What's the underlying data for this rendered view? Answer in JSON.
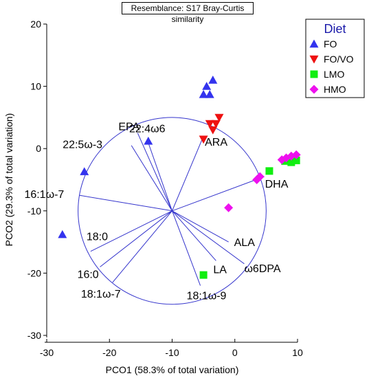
{
  "header": {
    "resemblance": "Resemblance: S17 Bray-Curtis similarity"
  },
  "chart_data": {
    "type": "scatter",
    "title": "",
    "xlabel": "PCO1 (58.3% of total variation)",
    "ylabel": "PCO2 (29.3% of total variation)",
    "xlim": [
      -30,
      10
    ],
    "ylim": [
      -30,
      20
    ],
    "xticks": [
      -30,
      -20,
      -10,
      0,
      10
    ],
    "yticks": [
      -30,
      -20,
      -10,
      0,
      10,
      20
    ],
    "grid": false,
    "legend": {
      "title": "Diet",
      "placement": "top-right"
    },
    "series": [
      {
        "name": "FO",
        "marker": "triangle-up",
        "color": "#3333ee",
        "points": [
          [
            -27.5,
            -13.8
          ],
          [
            -24,
            -3.7
          ],
          [
            -13.8,
            1.2
          ],
          [
            -5,
            8.7
          ],
          [
            -4.5,
            10
          ],
          [
            -4,
            8.7
          ],
          [
            -3.5,
            11
          ]
        ]
      },
      {
        "name": "FO/VO",
        "marker": "triangle-down",
        "color": "#ee1111",
        "points": [
          [
            -5,
            1.5
          ],
          [
            -4,
            4
          ],
          [
            -3.5,
            3
          ],
          [
            -3,
            4
          ],
          [
            -2.5,
            5
          ]
        ]
      },
      {
        "name": "LMO",
        "marker": "square",
        "color": "#11ee11",
        "points": [
          [
            -5,
            -20.3
          ],
          [
            5.5,
            -3.6
          ],
          [
            8,
            -2
          ],
          [
            9,
            -2.2
          ],
          [
            9.8,
            -1.9
          ]
        ]
      },
      {
        "name": "HMO",
        "marker": "diamond",
        "color": "#ee11ee",
        "points": [
          [
            -1,
            -9.5
          ],
          [
            3.5,
            -5
          ],
          [
            4,
            -4.5
          ],
          [
            7.5,
            -1.8
          ],
          [
            8.2,
            -1.5
          ],
          [
            9,
            -1.2
          ],
          [
            9.8,
            -1
          ]
        ]
      }
    ],
    "circle": {
      "center": [
        -10,
        -10
      ],
      "radius": 15
    },
    "vectors": [
      {
        "label": "EPA",
        "end": [
          -15.5,
          2.5
        ]
      },
      {
        "label": "22:4ω6",
        "end": [
          -14,
          1.5
        ]
      },
      {
        "label": "ARA",
        "end": [
          -5,
          2
        ]
      },
      {
        "label": "22:5ω-3",
        "end": [
          -16.5,
          0.5
        ]
      },
      {
        "label": "16:1ω-7",
        "end": [
          -24.8,
          -7.5
        ]
      },
      {
        "label": "DHA",
        "end": [
          4.7,
          -4.5
        ]
      },
      {
        "label": "18:0",
        "end": [
          -23,
          -16.5
        ]
      },
      {
        "label": "16:0",
        "end": [
          -21.5,
          -19
        ]
      },
      {
        "label": "18:1ω-7",
        "end": [
          -19.5,
          -21.5
        ]
      },
      {
        "label": "ALA",
        "end": [
          -1,
          -15
        ]
      },
      {
        "label": "LA",
        "end": [
          -3,
          -18
        ]
      },
      {
        "label": "ω6DPA",
        "end": [
          1.5,
          -18.5
        ]
      },
      {
        "label": "18:1ω-9",
        "end": [
          -5.5,
          -22
        ]
      }
    ]
  }
}
